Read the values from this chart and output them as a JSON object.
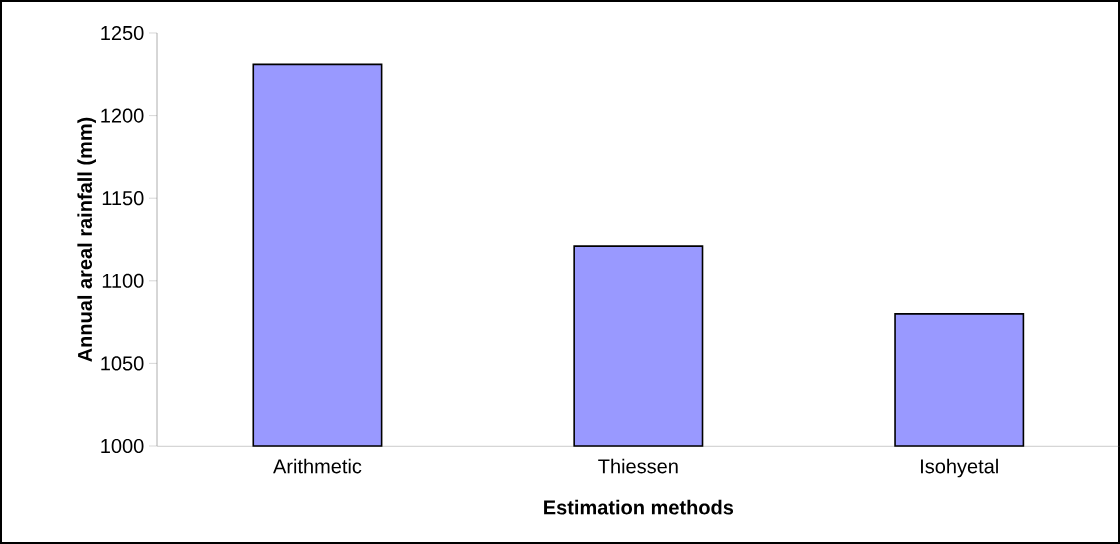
{
  "chart_data": {
    "type": "bar",
    "xlabel": "Estimation methods",
    "ylabel": "Annual areal rainfall (mm)",
    "categories": [
      "Arithmetic",
      "Thiessen",
      "Isohyetal"
    ],
    "values": [
      1231,
      1121,
      1080
    ],
    "color": "#9999ff",
    "ylim": [
      1000,
      1250
    ],
    "yticks": [
      1000,
      1050,
      1100,
      1150,
      1200,
      1250
    ]
  }
}
